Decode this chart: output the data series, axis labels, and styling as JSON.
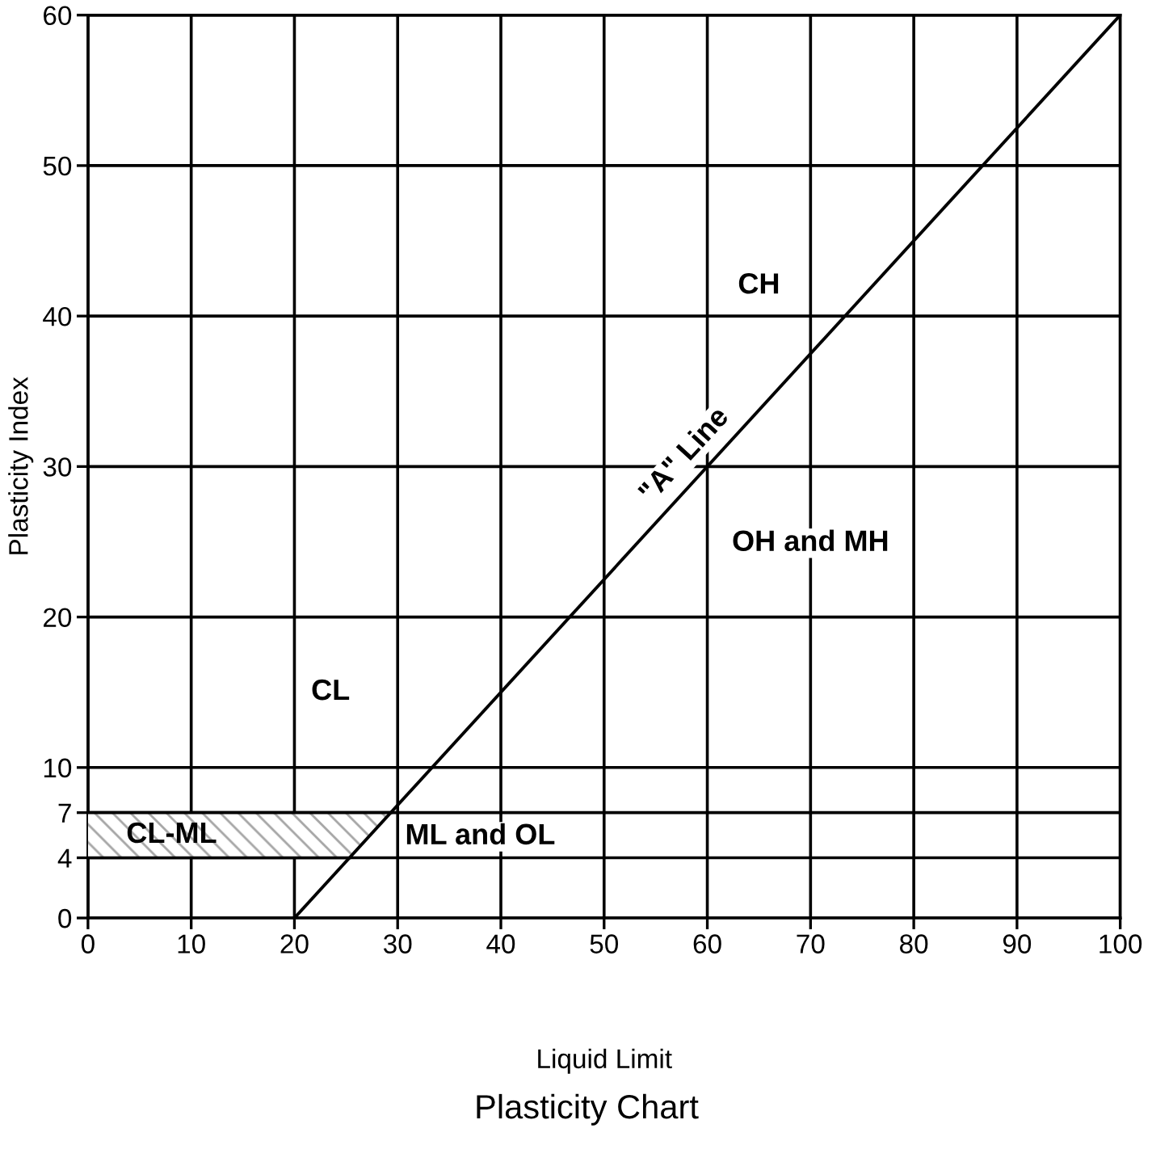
{
  "chart_data": {
    "type": "line",
    "title": "Plasticity Chart",
    "xlabel": "Liquid Limit",
    "ylabel": "Plasticity Index",
    "series": [
      {
        "name": "\"A\" Line",
        "color": "#000000",
        "x": [
          20,
          100
        ],
        "values": [
          0,
          60
        ]
      }
    ],
    "bands": [
      {
        "axis": "y",
        "from": 4,
        "to": 7,
        "label": "CL-ML",
        "color": "#a6a6a6"
      }
    ],
    "annotations": [
      "CH",
      "OH and MH",
      "CL",
      "ML and OL"
    ],
    "xlim": [
      0,
      100
    ],
    "ylim": [
      0,
      60
    ],
    "xticks": [
      0,
      10,
      20,
      30,
      40,
      50,
      60,
      70,
      80,
      90,
      100
    ],
    "yticks": [
      0,
      4,
      7,
      10,
      20,
      30,
      40,
      50,
      60
    ],
    "grid": true,
    "legend": false,
    "marker": "none",
    "line_style": "solid"
  }
}
